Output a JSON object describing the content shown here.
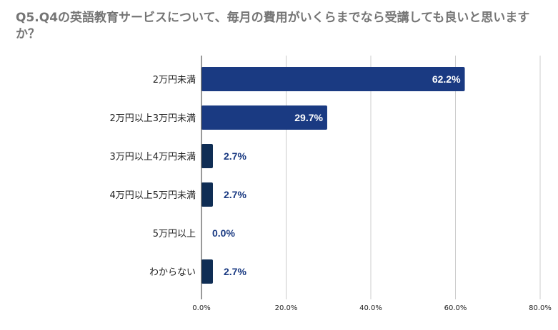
{
  "title": "Q5.Q4の英語教育サービスについて、毎月の費用がいくらまでなら受講しても良いと思いますか？",
  "colors": {
    "bar_primary": "#1a3a82",
    "bar_small": "#0f2d54",
    "gridline": "#cccccc",
    "axis_line": "#333333",
    "label_inside": "#ffffff",
    "label_outside": "#1a3a82",
    "title": "#757575"
  },
  "chart_data": {
    "type": "bar",
    "orientation": "horizontal",
    "title": "Q5.Q4の英語教育サービスについて、毎月の費用がいくらまでなら受講しても良いと思いますか？",
    "categories": [
      "2万円未満",
      "2万円以上3万円未満",
      "3万円以上4万円未満",
      "4万円以上5万円未満",
      "5万円以上",
      "わからない"
    ],
    "values": [
      62.2,
      29.7,
      2.7,
      2.7,
      0.0,
      2.7
    ],
    "value_labels": [
      "62.2%",
      "29.7%",
      "2.7%",
      "2.7%",
      "0.0%",
      "2.7%"
    ],
    "xlim": [
      0,
      80
    ],
    "xticks": [
      0,
      20,
      40,
      60,
      80
    ],
    "xtick_labels": [
      "0.0%",
      "20.0%",
      "40.0%",
      "60.0%",
      "80.0%"
    ],
    "xlabel": "",
    "ylabel": "",
    "grid": true,
    "legend": "none"
  }
}
